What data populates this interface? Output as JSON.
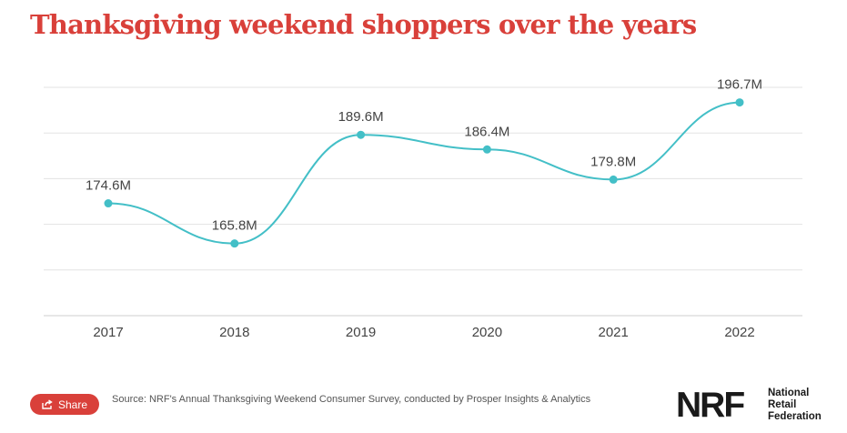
{
  "title": "Thanksgiving weekend shoppers over the years",
  "chart_data": {
    "type": "line",
    "categories": [
      "2017",
      "2018",
      "2019",
      "2020",
      "2021",
      "2022"
    ],
    "values": [
      174.6,
      165.8,
      189.6,
      186.4,
      179.8,
      196.7
    ],
    "data_labels": [
      "174.6M",
      "165.8M",
      "189.6M",
      "186.4M",
      "179.8M",
      "196.7M"
    ],
    "ylim": [
      150,
      200
    ],
    "gridlines": [
      160,
      170,
      180,
      190,
      200
    ],
    "title": "Thanksgiving weekend shoppers over the years",
    "xlabel": "",
    "ylabel": "",
    "line_color": "#43bfc7",
    "grid": true
  },
  "footer": {
    "share_label": "Share",
    "source": "Source: NRF's Annual Thanksgiving Weekend Consumer Survey, conducted by Prosper Insights & Analytics"
  },
  "logo": {
    "mark": "NRF",
    "name_lines": [
      "National",
      "Retail",
      "Federation"
    ]
  },
  "colors": {
    "accent": "#d9403a",
    "line": "#43bfc7",
    "grid": "#e3e3e3",
    "text": "#444444"
  }
}
